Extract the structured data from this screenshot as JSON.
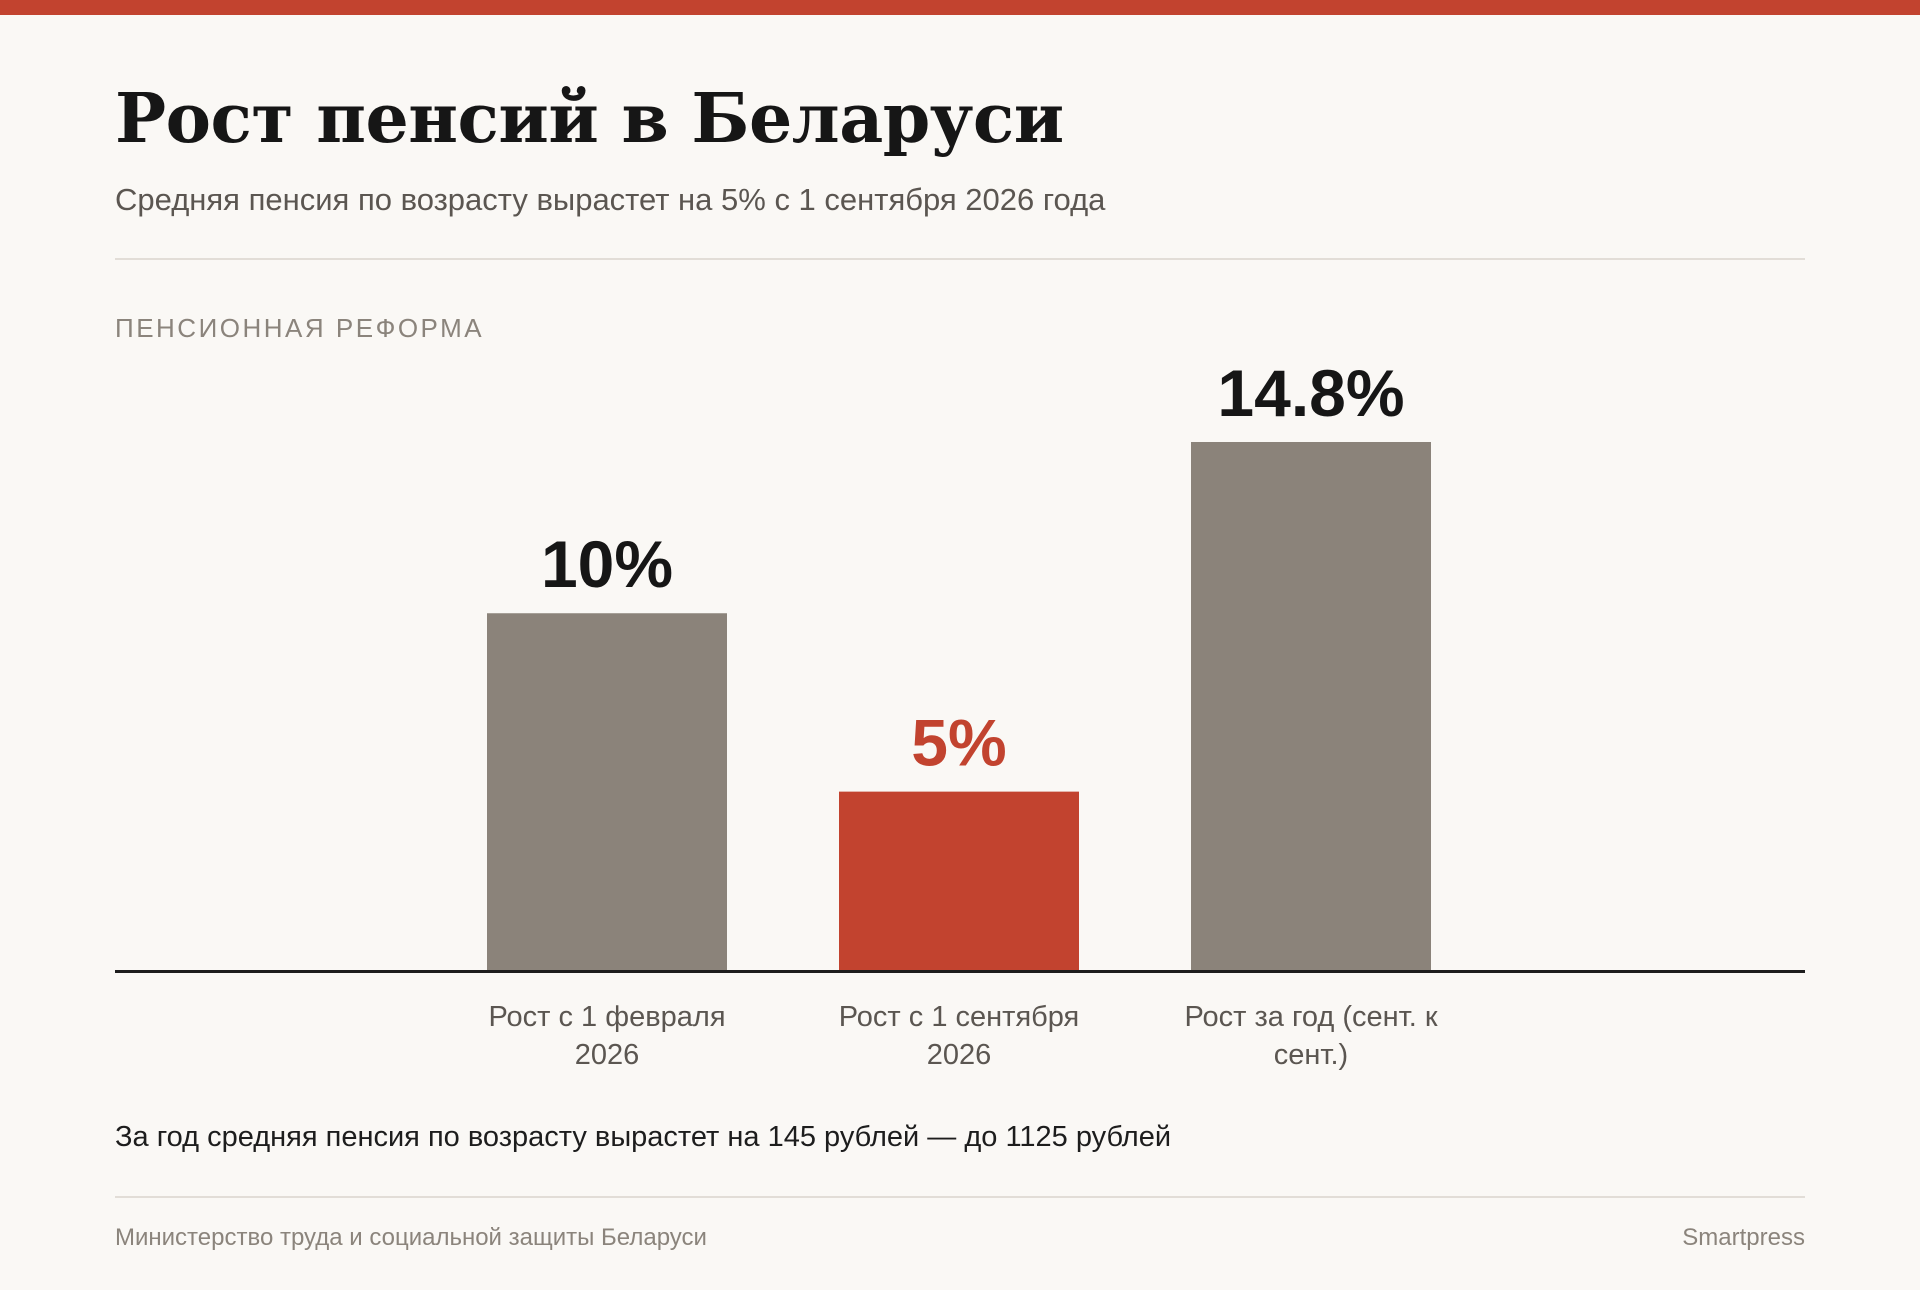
{
  "header": {
    "title": "Рост пенсий в Беларуси",
    "subtitle": "Средняя пенсия по возрасту вырастет на 5% с 1 сентября 2026 года",
    "kicker": "Пенсионная реформа"
  },
  "chart_data": {
    "type": "bar",
    "title": "",
    "xlabel": "",
    "ylabel": "",
    "ylim": [
      0,
      14.8
    ],
    "grid": false,
    "categories": [
      "Рост с 1 февраля 2026",
      "Рост с 1 сентября 2026",
      "Рост за год (сент. к сент.)"
    ],
    "category_lines": [
      [
        "Рост с 1 февраля",
        "2026"
      ],
      [
        "Рост с 1 сентября",
        "2026"
      ],
      [
        "Рост за год (сент. к",
        "сент.)"
      ]
    ],
    "values": [
      10,
      5,
      14.8
    ],
    "value_labels": [
      "10%",
      "5%",
      "14.8%"
    ],
    "highlight_index": 1
  },
  "note": "За год средняя пенсия по возрасту вырастет на 145 рублей — до 1125 рублей",
  "footer": {
    "source": "Министерство труда и социальной защиты Беларуси",
    "brand": "Smartpress"
  },
  "colors": {
    "accent": "#c2432f",
    "bar": "#8b837a",
    "label_dark": "#161616",
    "axis": "#1d1d1d"
  }
}
